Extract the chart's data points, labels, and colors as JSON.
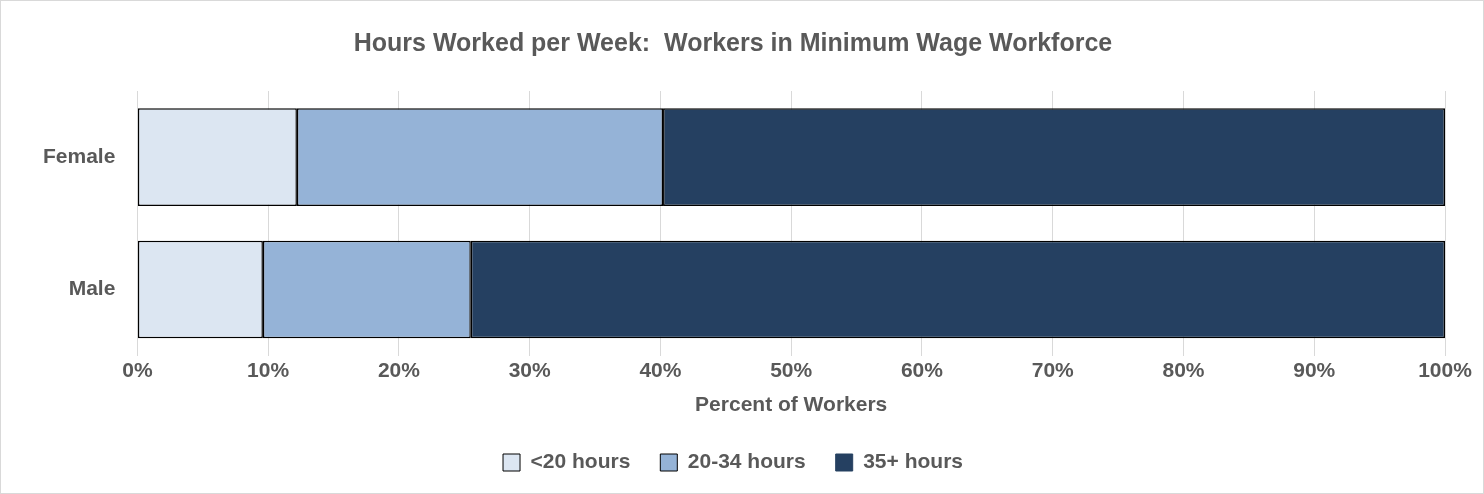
{
  "chart_data": {
    "type": "bar",
    "orientation": "horizontal",
    "stacked": true,
    "title": "Hours Worked per Week:  Workers in Minimum Wage Workforce",
    "xlabel": "Percent of Workers",
    "categories": [
      "Female",
      "Male"
    ],
    "series": [
      {
        "name": "<20 hours",
        "color": "#dce6f2",
        "values": [
          12.2,
          9.6
        ]
      },
      {
        "name": "20-34 hours",
        "color": "#95b3d7",
        "values": [
          28.0,
          15.9
        ]
      },
      {
        "name": "35+ hours",
        "color": "#254061",
        "values": [
          59.8,
          74.5
        ]
      }
    ],
    "xlim": [
      0,
      100
    ],
    "xticks": [
      {
        "value": 0,
        "label": "0%"
      },
      {
        "value": 10,
        "label": "10%"
      },
      {
        "value": 20,
        "label": "20%"
      },
      {
        "value": 30,
        "label": "30%"
      },
      {
        "value": 40,
        "label": "40%"
      },
      {
        "value": 50,
        "label": "50%"
      },
      {
        "value": 60,
        "label": "60%"
      },
      {
        "value": 70,
        "label": "70%"
      },
      {
        "value": 80,
        "label": "80%"
      },
      {
        "value": 90,
        "label": "90%"
      },
      {
        "value": 100,
        "label": "100%"
      }
    ],
    "grid": "x",
    "legend": "bottom"
  }
}
